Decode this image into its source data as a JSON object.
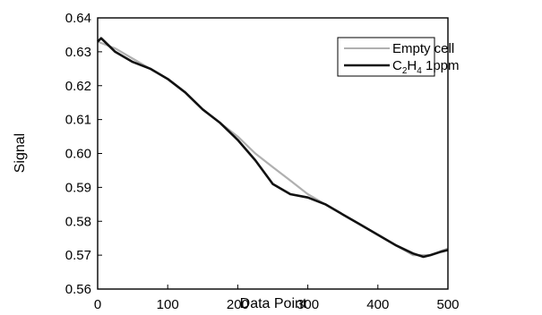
{
  "chart_data": {
    "type": "line",
    "xlabel": "Data Point",
    "ylabel": "Signal",
    "xlim": [
      0,
      500
    ],
    "ylim": [
      0.56,
      0.64
    ],
    "x_ticks": [
      "0",
      "100",
      "200",
      "300",
      "400",
      "500"
    ],
    "y_ticks": [
      "0.56",
      "0.57",
      "0.58",
      "0.59",
      "0.60",
      "0.61",
      "0.62",
      "0.63",
      "0.64"
    ],
    "grid": false,
    "legend_position": "top-right",
    "series": [
      {
        "name": "Empty cell",
        "color": "#b0b0b0",
        "x": [
          0,
          25,
          50,
          75,
          100,
          125,
          150,
          175,
          200,
          225,
          250,
          275,
          300,
          325,
          350,
          375,
          400,
          425,
          450,
          475,
          500
        ],
        "y": [
          0.633,
          0.631,
          0.628,
          0.625,
          0.622,
          0.618,
          0.613,
          0.609,
          0.605,
          0.6,
          0.596,
          0.592,
          0.588,
          0.585,
          0.582,
          0.579,
          0.576,
          0.573,
          0.57,
          0.57,
          0.572
        ]
      },
      {
        "name": "C2H4 1ppm",
        "color": "#111111",
        "x": [
          0,
          5,
          25,
          50,
          75,
          100,
          125,
          150,
          175,
          200,
          225,
          250,
          275,
          300,
          325,
          350,
          375,
          400,
          425,
          450,
          465,
          475,
          490,
          500
        ],
        "y": [
          0.633,
          0.634,
          0.63,
          0.627,
          0.625,
          0.622,
          0.618,
          0.613,
          0.609,
          0.604,
          0.598,
          0.591,
          0.588,
          0.587,
          0.585,
          0.582,
          0.579,
          0.576,
          0.573,
          0.5705,
          0.5695,
          0.57,
          0.571,
          0.5715
        ]
      }
    ]
  },
  "legend": {
    "empty_cell": "Empty cell",
    "c2h4_main": "C",
    "c2h4_sub1": "2",
    "c2h4_mid": "H",
    "c2h4_sub2": "4",
    "c2h4_tail": " 1ppm"
  }
}
